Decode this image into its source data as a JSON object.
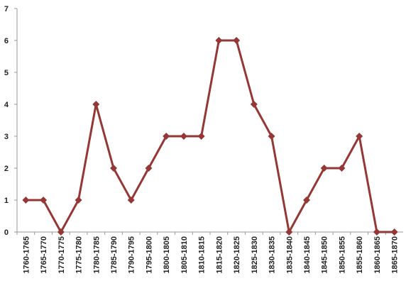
{
  "chart_data": {
    "type": "line",
    "categories": [
      "1760-1765",
      "1765-1770",
      "1770-1775",
      "1775-1780",
      "1780-1785",
      "1785-1790",
      "1790-1795",
      "1795-1800",
      "1800-1805",
      "1805-1810",
      "1810-1815",
      "1815-1820",
      "1820-1825",
      "1825-1830",
      "1830-1835",
      "1835-1840",
      "1840-1845",
      "1845-1850",
      "1850-1855",
      "1855-1860",
      "1860-1865",
      "1865-1870"
    ],
    "values": [
      1,
      1,
      0,
      1,
      4,
      2,
      1,
      2,
      3,
      3,
      3,
      6,
      6,
      4,
      3,
      0,
      1,
      2,
      2,
      3,
      0,
      0
    ],
    "color": "#953735",
    "ylim": [
      0,
      7
    ],
    "yticks": [
      0,
      1,
      2,
      3,
      4,
      5,
      6,
      7
    ],
    "grid": false
  }
}
